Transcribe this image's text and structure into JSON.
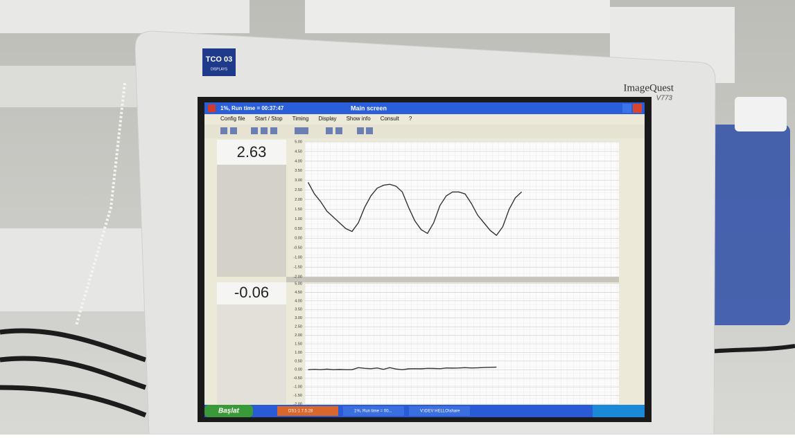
{
  "monitor": {
    "badge": "TCO 03",
    "badge_sub": "DISPLAYS",
    "brand": "ImageQuest",
    "model": "V773"
  },
  "window": {
    "title": "1%, Run time = 00:37:47",
    "caption": "Main screen"
  },
  "menu": [
    "Config file",
    "Start / Stop",
    "Timing",
    "Display",
    "Show info",
    "Consult",
    "?"
  ],
  "readouts": [
    "2.63",
    "-0.06"
  ],
  "taskbar": {
    "start": "Başlat",
    "items": [
      "DS1-1 7.5.28",
      "1%, Run time = 00...",
      "V:\\DEV HELLO\\share"
    ]
  },
  "chart_data": [
    {
      "type": "line",
      "color": "#333333",
      "grid": true,
      "ylim": [
        -2,
        5
      ],
      "yticks": [
        {
          "value": 5,
          "label": "5.00"
        },
        {
          "value": 4.5,
          "label": "4.50"
        },
        {
          "value": 4,
          "label": "4.00"
        },
        {
          "value": 3.5,
          "label": "3.50"
        },
        {
          "value": 3,
          "label": "3.00"
        },
        {
          "value": 2.5,
          "label": "2.50"
        },
        {
          "value": 2,
          "label": "2.00"
        },
        {
          "value": 1.5,
          "label": "1.50"
        },
        {
          "value": 1,
          "label": "1.00"
        },
        {
          "value": 0.5,
          "label": "0.50"
        },
        {
          "value": 0,
          "label": "0.00"
        },
        {
          "value": -0.5,
          "label": "-0.50"
        },
        {
          "value": -1,
          "label": "-1.00"
        },
        {
          "value": -1.5,
          "label": "-1.50"
        },
        {
          "value": -2,
          "label": "-2.00"
        }
      ],
      "values": [
        2.9,
        2.3,
        1.9,
        1.4,
        1.1,
        0.8,
        0.5,
        0.35,
        0.8,
        1.6,
        2.2,
        2.6,
        2.75,
        2.8,
        2.7,
        2.4,
        1.6,
        0.9,
        0.45,
        0.25,
        0.8,
        1.7,
        2.2,
        2.4,
        2.4,
        2.3,
        1.8,
        1.2,
        0.8,
        0.4,
        0.15,
        0.6,
        1.5,
        2.1,
        2.4,
        null,
        null,
        null,
        null,
        null,
        null,
        null,
        null,
        null,
        null,
        null,
        null,
        null,
        null,
        null
      ]
    },
    {
      "type": "line",
      "color": "#333333",
      "grid": true,
      "ylim": [
        -2,
        5
      ],
      "yticks": [
        {
          "value": 5,
          "label": "5.00"
        },
        {
          "value": 4.5,
          "label": "4.50"
        },
        {
          "value": 4,
          "label": "4.00"
        },
        {
          "value": 3.5,
          "label": "3.50"
        },
        {
          "value": 3,
          "label": "3.00"
        },
        {
          "value": 2.5,
          "label": "2.50"
        },
        {
          "value": 2,
          "label": "2.00"
        },
        {
          "value": 1.5,
          "label": "1.50"
        },
        {
          "value": 1,
          "label": "1.00"
        },
        {
          "value": 0.5,
          "label": "0.50"
        },
        {
          "value": 0,
          "label": "0.00"
        },
        {
          "value": -0.5,
          "label": "-0.50"
        },
        {
          "value": -1,
          "label": "-1.00"
        },
        {
          "value": -1.5,
          "label": "-1.50"
        },
        {
          "value": -2,
          "label": "-2.00"
        }
      ],
      "values": [
        0.0,
        0.02,
        0.0,
        0.03,
        0.0,
        0.01,
        0.0,
        0.0,
        0.12,
        0.08,
        0.06,
        0.1,
        0.02,
        0.12,
        0.04,
        0.0,
        0.05,
        0.06,
        0.05,
        0.08,
        0.07,
        0.06,
        0.1,
        0.09,
        0.1,
        0.12,
        0.1,
        0.11,
        0.13,
        0.14,
        0.15,
        null,
        null,
        null,
        null,
        null,
        null,
        null,
        null,
        null,
        null,
        null,
        null,
        null,
        null,
        null,
        null,
        null,
        null,
        null
      ]
    }
  ]
}
